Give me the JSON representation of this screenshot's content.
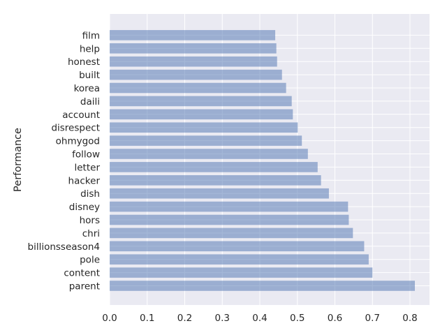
{
  "chart_data": {
    "type": "bar",
    "orientation": "horizontal",
    "title": "",
    "xlabel": "",
    "ylabel": "Performance",
    "xlim": [
      0,
      0.85
    ],
    "xticks": [
      "0.0",
      "0.1",
      "0.2",
      "0.3",
      "0.4",
      "0.5",
      "0.6",
      "0.7",
      "0.8"
    ],
    "grid": true,
    "colors": {
      "bar": "#4c72b0",
      "background": "#eaeaf2",
      "grid": "#ffffff",
      "text": "#262626"
    },
    "categories": [
      "parent",
      "content",
      "pole",
      "billionsseason4",
      "chri",
      "hors",
      "disney",
      "dish",
      "hacker",
      "letter",
      "follow",
      "ohmygod",
      "disrespect",
      "account",
      "daili",
      "korea",
      "built",
      "honest",
      "help",
      "film"
    ],
    "values": [
      0.813,
      0.7,
      0.69,
      0.678,
      0.648,
      0.637,
      0.635,
      0.584,
      0.563,
      0.554,
      0.528,
      0.512,
      0.501,
      0.488,
      0.485,
      0.47,
      0.459,
      0.446,
      0.444,
      0.441
    ]
  }
}
